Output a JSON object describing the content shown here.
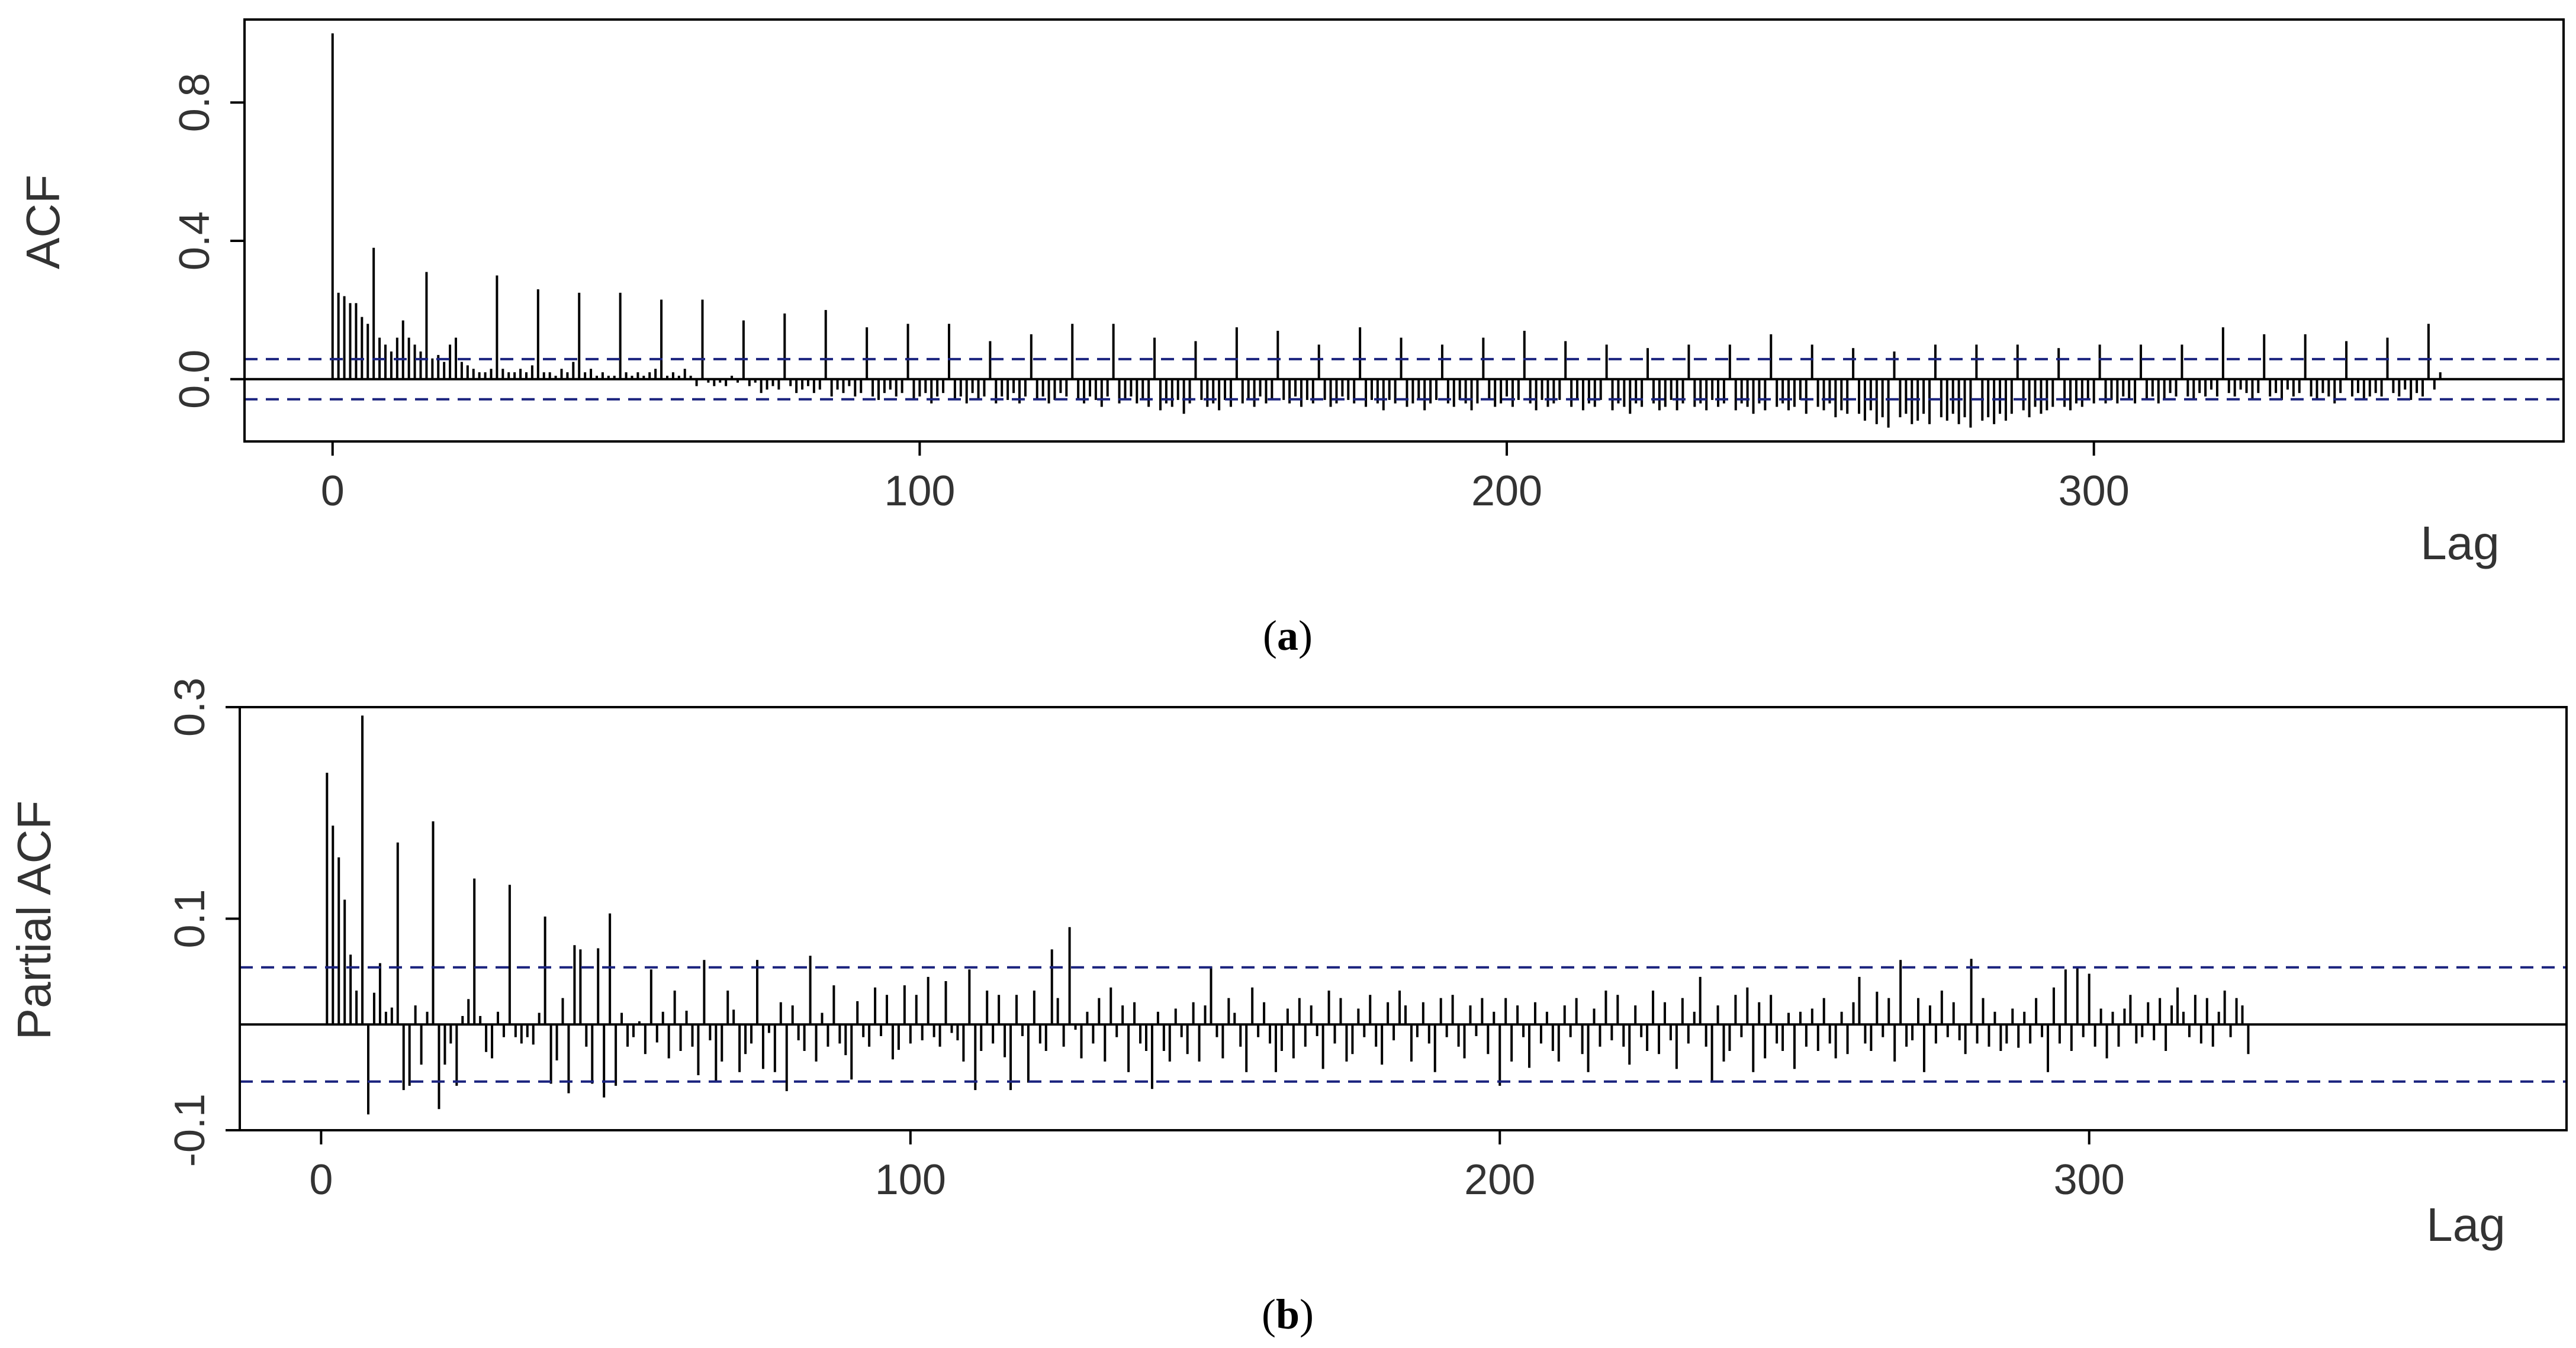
{
  "chart_data": [
    {
      "type": "bar",
      "panel": "acf",
      "caption_letter": "a",
      "xlabel": "Lag",
      "ylabel": "ACF",
      "xlim": [
        -15,
        380
      ],
      "ylim": [
        -0.18,
        1.04
      ],
      "x_ticks": [
        0,
        100,
        200,
        300
      ],
      "x_tick_labels": [
        "0",
        "100",
        "200",
        "300"
      ],
      "y_ticks": [
        0.0,
        0.4,
        0.8
      ],
      "y_tick_labels": [
        "0.0",
        "0.4",
        "0.8"
      ],
      "confidence_bounds": [
        0.058,
        -0.058
      ],
      "bound_color": "#1a237e",
      "bar_color": "#000000",
      "grid": false,
      "lag_max": 364,
      "values": [
        1.0,
        0.25,
        0.24,
        0.22,
        0.22,
        0.18,
        0.16,
        0.38,
        0.12,
        0.1,
        0.08,
        0.12,
        0.17,
        0.12,
        0.1,
        0.08,
        0.31,
        0.06,
        0.07,
        0.05,
        0.1,
        0.12,
        0.05,
        0.04,
        0.03,
        0.02,
        0.02,
        0.03,
        0.3,
        0.03,
        0.02,
        0.02,
        0.03,
        0.02,
        0.04,
        0.26,
        0.02,
        0.02,
        0.01,
        0.03,
        0.02,
        0.05,
        0.25,
        0.02,
        0.03,
        0.01,
        0.02,
        0.01,
        0.01,
        0.25,
        0.02,
        0.01,
        0.02,
        0.01,
        0.02,
        0.03,
        0.23,
        0.01,
        0.02,
        0.01,
        0.03,
        0.01,
        -0.02,
        0.23,
        -0.01,
        -0.02,
        -0.01,
        -0.02,
        0.01,
        -0.01,
        0.17,
        -0.02,
        -0.01,
        -0.04,
        -0.03,
        -0.02,
        -0.03,
        0.19,
        -0.02,
        -0.04,
        -0.03,
        -0.02,
        -0.04,
        -0.03,
        0.2,
        -0.05,
        -0.03,
        -0.04,
        -0.02,
        -0.05,
        -0.04,
        0.15,
        -0.05,
        -0.06,
        -0.04,
        -0.03,
        -0.05,
        -0.04,
        0.16,
        -0.06,
        -0.05,
        -0.04,
        -0.07,
        -0.05,
        -0.04,
        0.16,
        -0.06,
        -0.05,
        -0.07,
        -0.04,
        -0.06,
        -0.05,
        0.11,
        -0.07,
        -0.05,
        -0.06,
        -0.04,
        -0.07,
        -0.05,
        0.13,
        -0.06,
        -0.05,
        -0.07,
        -0.06,
        -0.04,
        -0.05,
        0.16,
        -0.06,
        -0.07,
        -0.05,
        -0.06,
        -0.08,
        -0.05,
        0.16,
        -0.07,
        -0.06,
        -0.05,
        -0.07,
        -0.06,
        -0.08,
        0.12,
        -0.09,
        -0.07,
        -0.08,
        -0.06,
        -0.1,
        -0.07,
        0.11,
        -0.06,
        -0.08,
        -0.07,
        -0.09,
        -0.06,
        -0.08,
        0.15,
        -0.07,
        -0.06,
        -0.08,
        -0.05,
        -0.07,
        -0.06,
        0.14,
        -0.06,
        -0.07,
        -0.05,
        -0.08,
        -0.06,
        -0.07,
        0.1,
        -0.06,
        -0.08,
        -0.07,
        -0.05,
        -0.06,
        -0.07,
        0.15,
        -0.08,
        -0.06,
        -0.07,
        -0.09,
        -0.06,
        -0.07,
        0.12,
        -0.08,
        -0.07,
        -0.06,
        -0.09,
        -0.07,
        -0.06,
        0.1,
        -0.07,
        -0.08,
        -0.06,
        -0.07,
        -0.09,
        -0.07,
        0.12,
        -0.06,
        -0.08,
        -0.07,
        -0.05,
        -0.08,
        -0.06,
        0.14,
        -0.07,
        -0.09,
        -0.06,
        -0.08,
        -0.07,
        -0.06,
        0.11,
        -0.08,
        -0.06,
        -0.09,
        -0.07,
        -0.08,
        -0.06,
        0.1,
        -0.09,
        -0.07,
        -0.08,
        -0.1,
        -0.07,
        -0.08,
        0.09,
        -0.07,
        -0.09,
        -0.08,
        -0.06,
        -0.09,
        -0.07,
        0.1,
        -0.08,
        -0.07,
        -0.09,
        -0.06,
        -0.08,
        -0.07,
        0.1,
        -0.09,
        -0.07,
        -0.08,
        -0.1,
        -0.07,
        -0.09,
        0.13,
        -0.08,
        -0.07,
        -0.09,
        -0.08,
        -0.06,
        -0.1,
        0.1,
        -0.08,
        -0.09,
        -0.07,
        -0.11,
        -0.09,
        -0.1,
        0.09,
        -0.1,
        -0.12,
        -0.09,
        -0.13,
        -0.11,
        -0.14,
        0.08,
        -0.11,
        -0.1,
        -0.13,
        -0.12,
        -0.1,
        -0.13,
        0.1,
        -0.11,
        -0.12,
        -0.1,
        -0.13,
        -0.11,
        -0.14,
        0.1,
        -0.12,
        -0.11,
        -0.13,
        -0.1,
        -0.12,
        -0.1,
        0.1,
        -0.09,
        -0.11,
        -0.08,
        -0.1,
        -0.09,
        -0.08,
        0.09,
        -0.08,
        -0.09,
        -0.07,
        -0.08,
        -0.06,
        -0.07,
        0.1,
        -0.07,
        -0.06,
        -0.07,
        -0.05,
        -0.06,
        -0.07,
        0.1,
        -0.06,
        -0.05,
        -0.07,
        -0.06,
        -0.04,
        -0.05,
        0.1,
        -0.05,
        -0.06,
        -0.04,
        -0.05,
        -0.03,
        -0.05,
        0.15,
        -0.04,
        -0.05,
        -0.03,
        -0.04,
        -0.06,
        -0.04,
        0.13,
        -0.05,
        -0.04,
        -0.06,
        -0.03,
        -0.05,
        -0.04,
        0.13,
        -0.05,
        -0.06,
        -0.04,
        -0.05,
        -0.07,
        -0.04,
        0.11,
        -0.05,
        -0.04,
        -0.06,
        -0.05,
        -0.04,
        -0.05,
        0.12,
        -0.04,
        -0.05,
        -0.03,
        -0.06,
        -0.04,
        -0.05,
        0.16,
        -0.03,
        0.02
      ]
    },
    {
      "type": "bar",
      "panel": "pacf",
      "caption_letter": "b",
      "xlabel": "Lag",
      "ylabel": "Partial ACF",
      "xlim": [
        -13.8,
        381
      ],
      "ylim": [
        -0.1,
        0.3
      ],
      "x_ticks": [
        0,
        100,
        200,
        300
      ],
      "x_tick_labels": [
        "0",
        "100",
        "200",
        "300"
      ],
      "y_ticks": [
        -0.1,
        0.1,
        0.3
      ],
      "y_tick_labels": [
        "-0.1",
        "0.1",
        "0.3"
      ],
      "confidence_bounds": [
        0.054,
        -0.054
      ],
      "bound_color": "#1a237e",
      "bar_color": "#000000",
      "grid": false,
      "lag_min": 1,
      "values": [
        0.238,
        0.188,
        0.158,
        0.118,
        0.066,
        0.032,
        0.292,
        -0.085,
        0.03,
        0.058,
        0.012,
        0.016,
        0.172,
        -0.062,
        -0.058,
        0.018,
        -0.038,
        0.012,
        0.192,
        -0.08,
        -0.038,
        -0.018,
        -0.058,
        0.008,
        0.024,
        0.138,
        0.008,
        -0.026,
        -0.032,
        0.012,
        -0.012,
        0.132,
        -0.012,
        -0.018,
        -0.012,
        -0.019,
        0.011,
        0.102,
        -0.056,
        -0.034,
        0.025,
        -0.065,
        0.075,
        0.071,
        -0.021,
        -0.056,
        0.072,
        -0.069,
        0.105,
        -0.058,
        0.011,
        -0.021,
        -0.012,
        0.003,
        -0.028,
        0.052,
        -0.017,
        0.012,
        -0.032,
        0.032,
        -0.025,
        0.013,
        -0.021,
        -0.048,
        0.061,
        -0.015,
        -0.053,
        -0.035,
        0.032,
        0.014,
        -0.045,
        -0.028,
        -0.018,
        0.061,
        -0.042,
        -0.008,
        -0.045,
        0.021,
        -0.063,
        0.018,
        -0.015,
        -0.025,
        0.065,
        -0.035,
        0.011,
        -0.021,
        0.037,
        -0.018,
        -0.029,
        -0.052,
        0.022,
        -0.012,
        -0.021,
        0.035,
        -0.011,
        0.028,
        -0.033,
        -0.024,
        0.037,
        -0.018,
        0.028,
        -0.015,
        0.045,
        -0.012,
        -0.021,
        0.041,
        -0.008,
        -0.015,
        -0.035,
        0.052,
        -0.062,
        -0.025,
        0.032,
        -0.018,
        0.028,
        -0.031,
        -0.062,
        0.028,
        -0.011,
        -0.055,
        0.032,
        -0.018,
        -0.025,
        0.071,
        0.025,
        -0.021,
        0.092,
        -0.005,
        -0.032,
        0.012,
        -0.018,
        0.025,
        -0.035,
        0.035,
        -0.012,
        0.018,
        -0.045,
        0.021,
        -0.018,
        -0.025,
        -0.061,
        0.012,
        -0.025,
        -0.035,
        0.015,
        -0.012,
        -0.028,
        0.021,
        -0.035,
        0.018,
        0.055,
        -0.012,
        -0.032,
        0.025,
        0.011,
        -0.021,
        -0.045,
        0.035,
        -0.012,
        0.021,
        -0.018,
        -0.045,
        -0.025,
        0.015,
        -0.032,
        0.025,
        -0.021,
        0.018,
        -0.011,
        -0.042,
        0.032,
        -0.018,
        0.025,
        -0.035,
        -0.028,
        0.015,
        -0.012,
        0.028,
        -0.021,
        -0.038,
        0.021,
        -0.015,
        0.032,
        0.018,
        -0.035,
        -0.012,
        0.021,
        -0.018,
        -0.045,
        0.025,
        -0.012,
        0.028,
        -0.021,
        -0.032,
        0.018,
        -0.011,
        0.025,
        -0.028,
        0.012,
        -0.058,
        0.025,
        -0.035,
        0.018,
        -0.012,
        -0.041,
        0.021,
        -0.018,
        0.012,
        -0.025,
        -0.035,
        0.018,
        -0.012,
        0.025,
        -0.028,
        -0.045,
        0.015,
        -0.021,
        0.032,
        -0.015,
        0.028,
        -0.021,
        -0.038,
        0.018,
        -0.012,
        -0.025,
        0.032,
        -0.028,
        0.021,
        -0.015,
        -0.042,
        0.025,
        -0.018,
        0.012,
        0.045,
        -0.021,
        -0.055,
        0.018,
        -0.035,
        -0.025,
        0.028,
        -0.012,
        0.035,
        -0.045,
        0.021,
        -0.032,
        0.028,
        -0.018,
        -0.025,
        0.011,
        -0.042,
        0.012,
        -0.021,
        0.015,
        -0.025,
        0.025,
        -0.018,
        -0.032,
        0.012,
        -0.028,
        0.021,
        0.045,
        -0.018,
        -0.025,
        0.031,
        -0.012,
        0.025,
        -0.035,
        0.061,
        -0.021,
        -0.015,
        0.025,
        -0.045,
        0.018,
        -0.018,
        0.032,
        -0.012,
        0.021,
        -0.015,
        -0.028,
        0.062,
        -0.018,
        0.025,
        -0.021,
        0.012,
        -0.025,
        -0.018,
        0.015,
        -0.022,
        0.012,
        -0.018,
        0.025,
        -0.012,
        -0.045,
        0.035,
        -0.018,
        0.052,
        -0.025,
        0.055,
        -0.012,
        0.048,
        -0.021,
        0.015,
        -0.032,
        0.012,
        -0.021,
        0.015,
        0.028,
        -0.018,
        -0.012,
        0.021,
        -0.015,
        0.025,
        -0.025,
        0.018,
        0.035,
        0.012,
        -0.012,
        0.028,
        -0.018,
        0.025,
        -0.021,
        0.012,
        0.032,
        -0.012,
        0.025,
        0.018,
        -0.028
      ]
    }
  ]
}
